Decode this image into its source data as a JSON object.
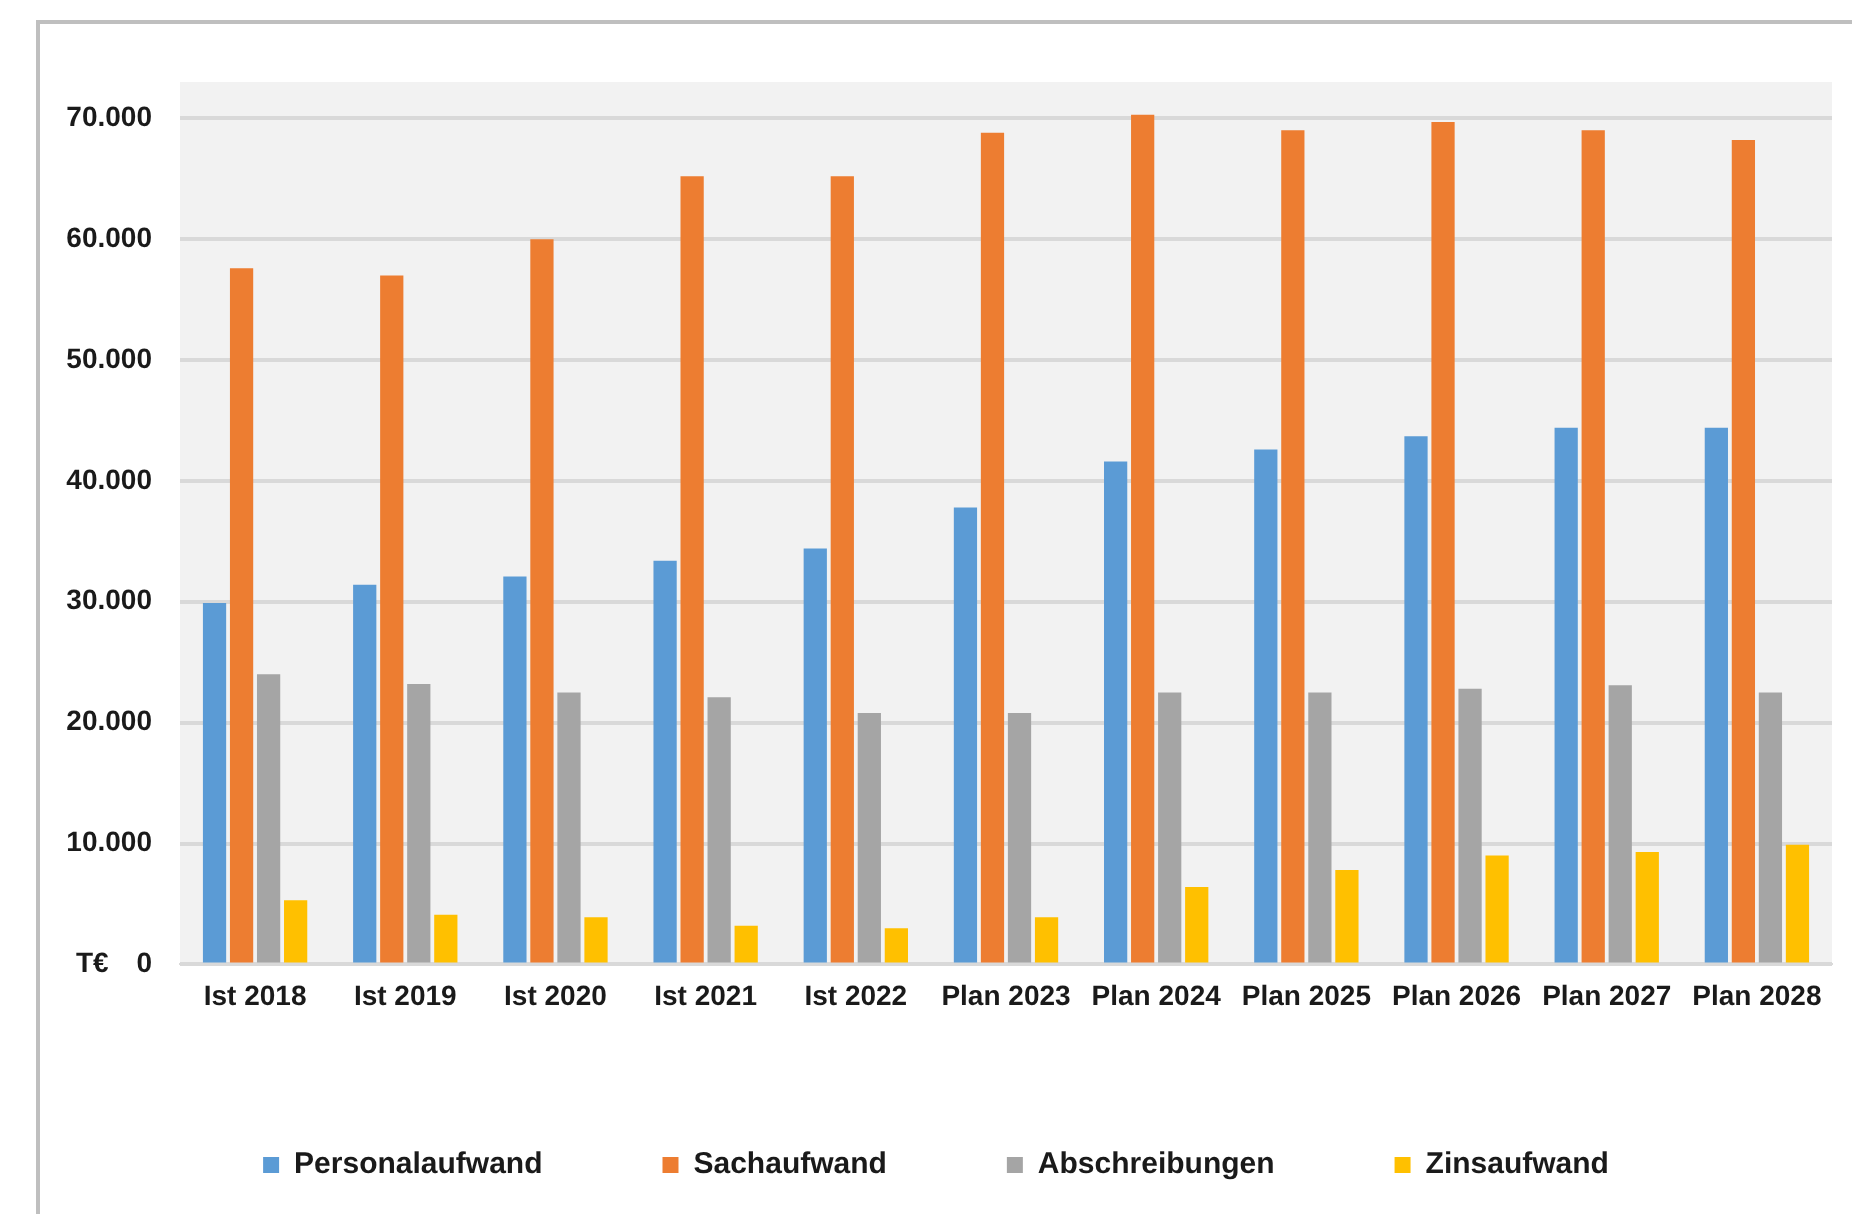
{
  "chart_data": {
    "type": "bar",
    "ylabel": "T€",
    "categories": [
      "Ist 2018",
      "Ist 2019",
      "Ist 2020",
      "Ist 2021",
      "Ist 2022",
      "Plan 2023",
      "Plan 2024",
      "Plan 2025",
      "Plan 2026",
      "Plan 2027",
      "Plan 2028"
    ],
    "series": [
      {
        "name": "Personalaufwand",
        "color": "#5b9bd5",
        "values": [
          29900,
          31400,
          32100,
          33400,
          34400,
          37800,
          41600,
          42600,
          43700,
          44400,
          44400
        ]
      },
      {
        "name": "Sachaufwand",
        "color": "#ed7d31",
        "values": [
          57600,
          57000,
          60000,
          65200,
          65200,
          68800,
          70300,
          69000,
          69700,
          69000,
          68200
        ]
      },
      {
        "name": "Abschreibungen",
        "color": "#a5a5a5",
        "values": [
          24000,
          23200,
          22500,
          22100,
          20800,
          20800,
          22500,
          22500,
          22800,
          23100,
          22500
        ]
      },
      {
        "name": "Zinsaufwand",
        "color": "#ffc000",
        "values": [
          5300,
          4100,
          3900,
          3200,
          3000,
          3900,
          6400,
          7800,
          9000,
          9300,
          9900
        ]
      }
    ],
    "ylim": [
      0,
      73000
    ],
    "yticks": [
      0,
      {
        "value": 10000,
        "label": "10.000"
      },
      {
        "value": 20000,
        "label": "20.000"
      },
      {
        "value": 30000,
        "label": "30.000"
      },
      {
        "value": 40000,
        "label": "40.000"
      },
      {
        "value": 50000,
        "label": "50.000"
      },
      {
        "value": 60000,
        "label": "60.000"
      },
      {
        "value": 70000,
        "label": "70.000"
      }
    ],
    "grid": "y",
    "legend": "bottom"
  }
}
